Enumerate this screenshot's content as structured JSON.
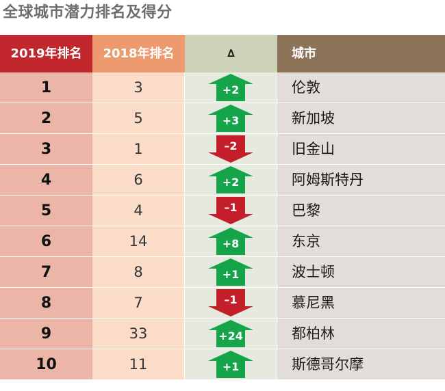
{
  "title": "全球城市潜力排名及得分",
  "header": {
    "rank2019": "2019年排名",
    "rank2018": "2018年排名",
    "delta": "∆",
    "city": "城市"
  },
  "colors": {
    "up": "#16a44a",
    "down": "#c41e2b",
    "rank2019_header": "#c2272d",
    "rank2018_header": "#ec9a6e",
    "delta_header": "#cdd3b8",
    "city_header": "#8c7358"
  },
  "rows": [
    {
      "rank2019": "1",
      "rank2018": "3",
      "change": "+2",
      "direction": "up",
      "city": "伦敦"
    },
    {
      "rank2019": "2",
      "rank2018": "5",
      "change": "+3",
      "direction": "up",
      "city": "新加坡"
    },
    {
      "rank2019": "3",
      "rank2018": "1",
      "change": "–2",
      "direction": "down",
      "city": "旧金山"
    },
    {
      "rank2019": "4",
      "rank2018": "6",
      "change": "+2",
      "direction": "up",
      "city": "阿姆斯特丹"
    },
    {
      "rank2019": "5",
      "rank2018": "4",
      "change": "–1",
      "direction": "down",
      "city": "巴黎"
    },
    {
      "rank2019": "6",
      "rank2018": "14",
      "change": "+8",
      "direction": "up",
      "city": "东京"
    },
    {
      "rank2019": "7",
      "rank2018": "8",
      "change": "+1",
      "direction": "up",
      "city": "波士顿"
    },
    {
      "rank2019": "8",
      "rank2018": "7",
      "change": "–1",
      "direction": "down",
      "city": "慕尼黑"
    },
    {
      "rank2019": "9",
      "rank2018": "33",
      "change": "+24",
      "direction": "up",
      "city": "都柏林"
    },
    {
      "rank2019": "10",
      "rank2018": "11",
      "change": "+1",
      "direction": "up",
      "city": "斯德哥尔摩"
    }
  ]
}
